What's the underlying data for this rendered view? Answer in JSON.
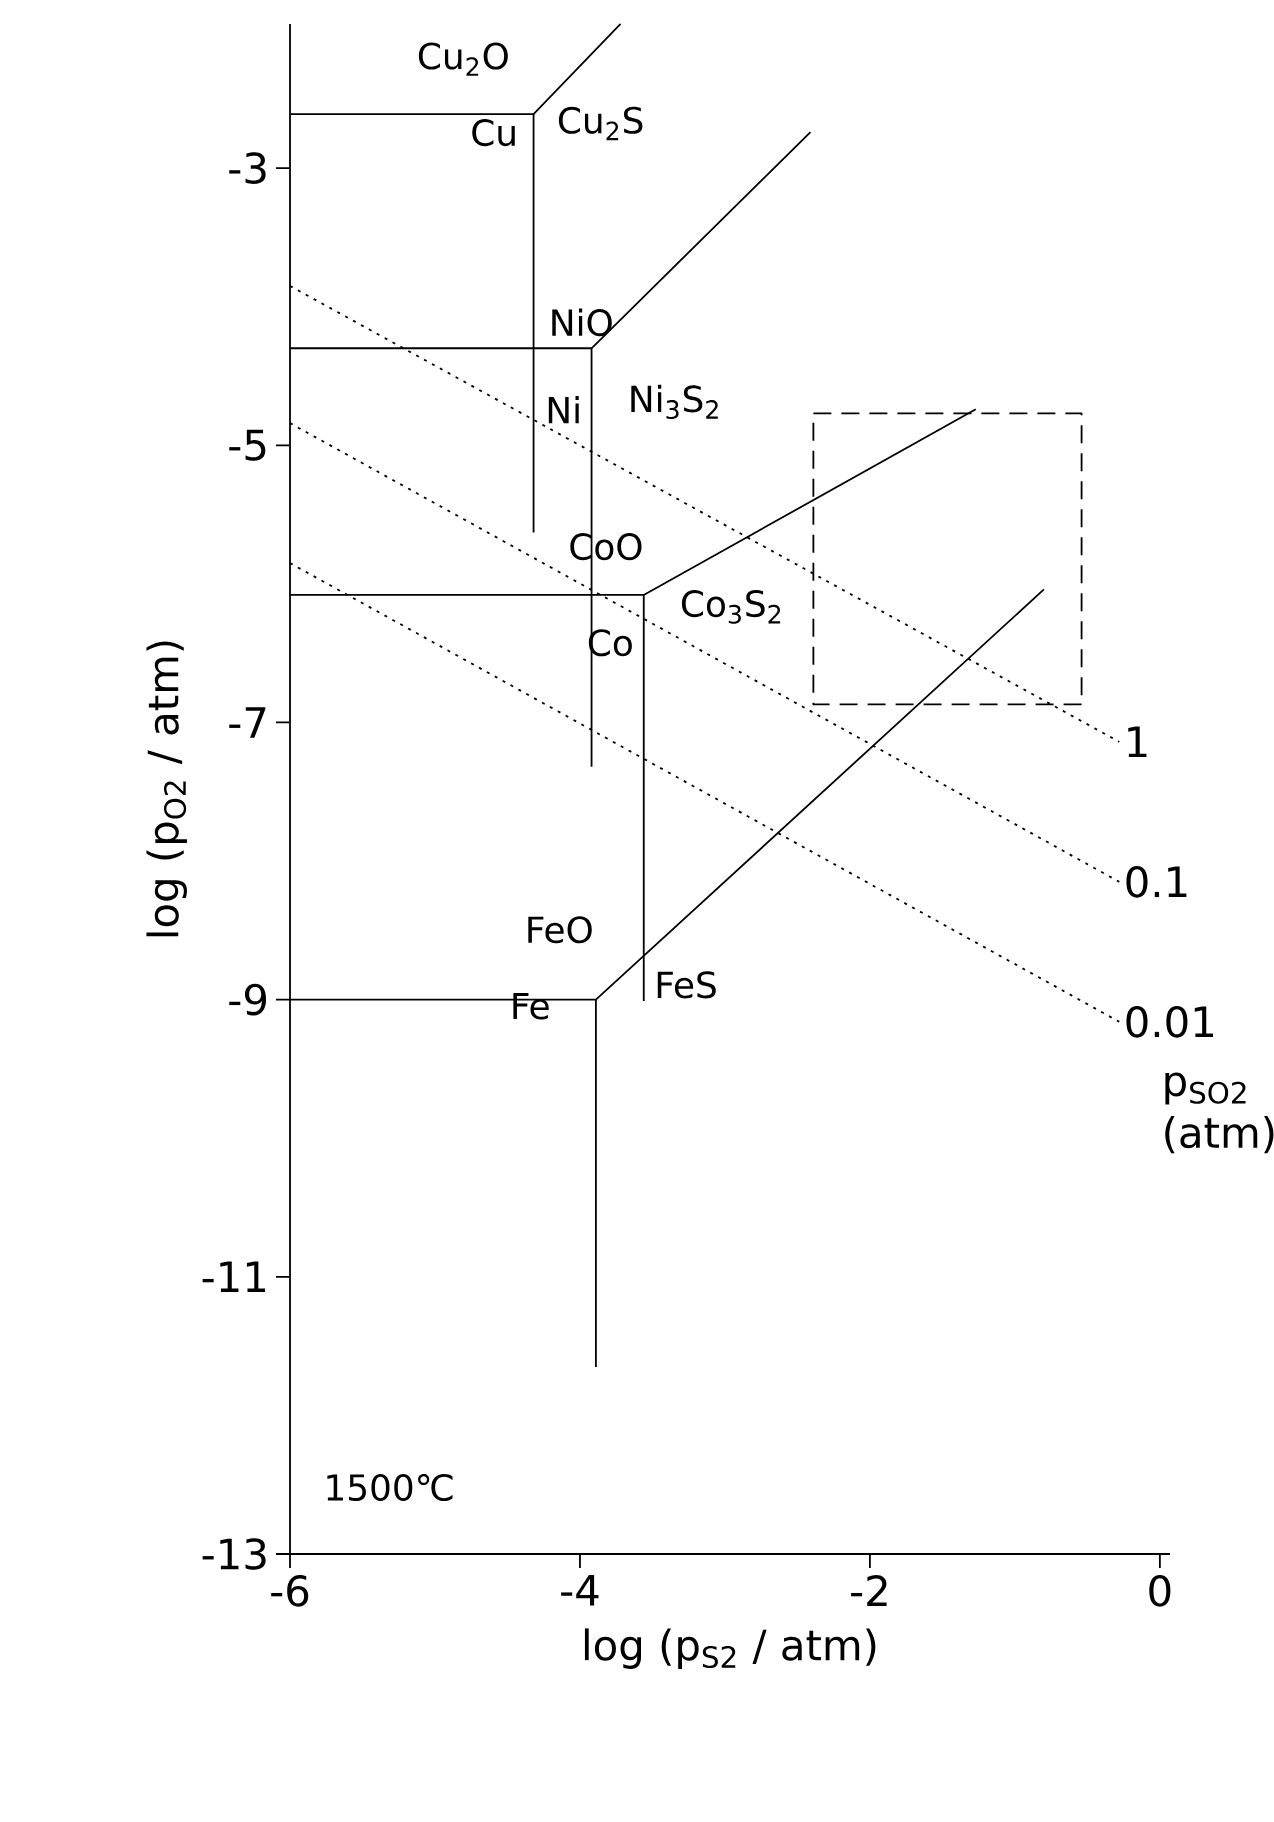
{
  "chart_data": {
    "type": "line",
    "xlabel": "log (p$_{S2}$ / atm)",
    "ylabel": "log (p$_{O2}$ / atm)",
    "legend_title": "p$_{SO2}$ (atm)",
    "xlim": [
      -6,
      0.07
    ],
    "ylim": [
      -13,
      -1.96
    ],
    "xticks": [
      -6,
      -4,
      -2,
      0
    ],
    "yticks": [
      -3,
      -5,
      -7,
      -9,
      -11,
      -13
    ],
    "grid": false,
    "marker": "none",
    "series": [
      {
        "color": "#000000",
        "line_style": "solid",
        "x": [
          -6,
          -4.32,
          -3.72
        ],
        "values": [
          -2.61,
          -2.61,
          -1.96
        ]
      },
      {
        "color": "#000000",
        "line_style": "solid",
        "x": [
          -4.32,
          -4.32
        ],
        "values": [
          -2.61,
          -5.63
        ]
      },
      {
        "color": "#000000",
        "line_style": "solid",
        "x": [
          -6,
          -3.92,
          -2.41
        ],
        "values": [
          -4.3,
          -4.3,
          -2.74
        ]
      },
      {
        "color": "#000000",
        "line_style": "solid",
        "x": [
          -3.92,
          -3.92
        ],
        "values": [
          -4.3,
          -7.32
        ]
      },
      {
        "color": "#000000",
        "line_style": "solid",
        "x": [
          -6,
          -3.56,
          -1.27
        ],
        "values": [
          -6.08,
          -6.08,
          -4.74
        ]
      },
      {
        "color": "#000000",
        "line_style": "solid",
        "x": [
          -3.56,
          -3.56
        ],
        "values": [
          -6.08,
          -9.01
        ]
      },
      {
        "color": "#000000",
        "line_style": "solid",
        "x": [
          -6,
          -3.89,
          -0.8
        ],
        "values": [
          -9.0,
          -9.0,
          -6.04
        ]
      },
      {
        "color": "#000000",
        "line_style": "solid",
        "x": [
          -3.89,
          -3.89
        ],
        "values": [
          -9.0,
          -11.65
        ]
      },
      {
        "name": "1",
        "color": "#000000",
        "line_style": "dotted",
        "x": [
          -6,
          -0.28
        ],
        "values": [
          -3.85,
          -7.14
        ]
      },
      {
        "name": "0.1",
        "color": "#000000",
        "line_style": "dotted",
        "x": [
          -6,
          -0.28
        ],
        "values": [
          -4.84,
          -8.15
        ]
      },
      {
        "name": "0.01",
        "color": "#000000",
        "line_style": "dotted",
        "x": [
          -6,
          -0.28
        ],
        "values": [
          -5.85,
          -9.16
        ]
      },
      {
        "color": "#000000",
        "line_style": "dashed",
        "x": [
          -2.39,
          -0.54,
          -0.54
        ],
        "values": [
          -4.77,
          -4.77,
          -6.87
        ]
      },
      {
        "color": "#000000",
        "line_style": "dashed",
        "x": [
          -0.54,
          -2.39,
          -2.39
        ],
        "values": [
          -6.87,
          -6.87,
          -4.77
        ]
      }
    ],
    "annotations": [
      "Cu$_{2}$O",
      "Cu",
      "Cu$_{2}$S",
      "NiO",
      "Ni",
      "Ni$_{3}$S$_{2}$",
      "CoO",
      "Co",
      "Co$_{3}$S$_{2}$",
      "FeO",
      "Fe",
      "FeS",
      "1500℃"
    ]
  }
}
